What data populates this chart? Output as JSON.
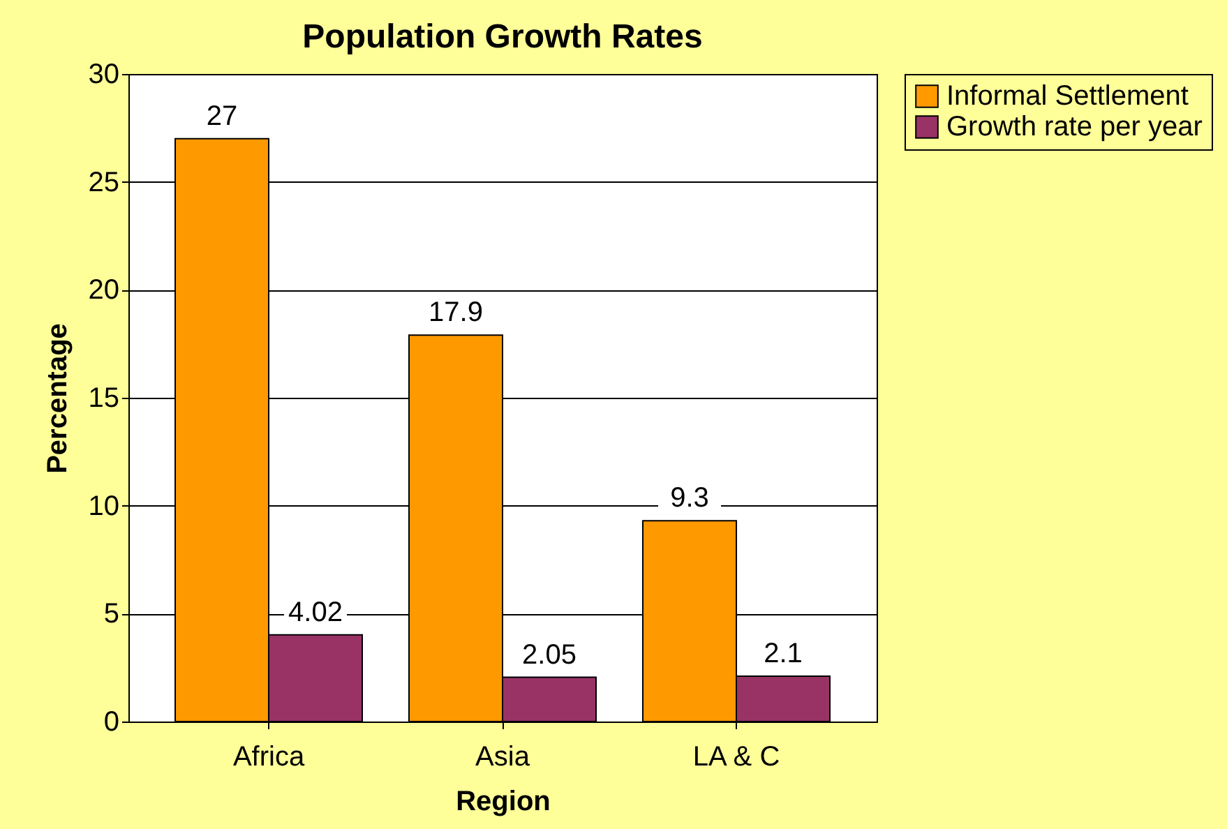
{
  "chart_data": {
    "type": "bar",
    "title": "Population Growth Rates",
    "xlabel": "Region",
    "ylabel": "Percentage",
    "categories": [
      "Africa",
      "Asia",
      "LA & C"
    ],
    "series": [
      {
        "name": "Informal Settlement",
        "color": "#ff9900",
        "values": [
          27,
          17.9,
          9.3
        ]
      },
      {
        "name": "Growth rate per year",
        "color": "#993366",
        "values": [
          4.02,
          2.05,
          2.1
        ]
      }
    ],
    "ylim": [
      0,
      30
    ],
    "yticks": [
      0,
      5,
      10,
      15,
      20,
      25,
      30
    ],
    "grid": "y",
    "legend": "right",
    "data_labels": true
  }
}
